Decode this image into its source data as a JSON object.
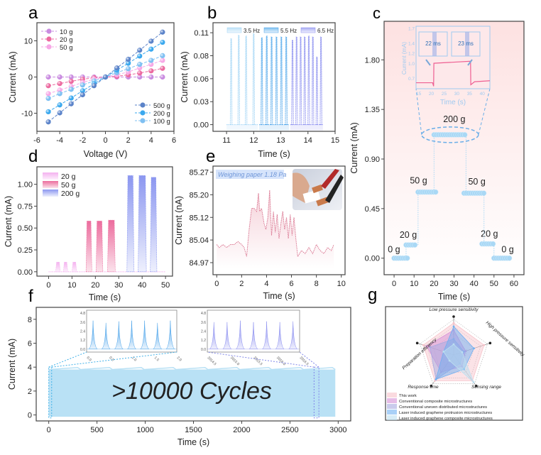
{
  "chart_data": [
    {
      "panel": "a",
      "type": "scatter",
      "title": "",
      "xlabel": "Voltage (V)",
      "ylabel": "Current (mA)",
      "xlim": [
        -6,
        6
      ],
      "ylim": [
        -15,
        15
      ],
      "xticks": [
        -6,
        -4,
        -2,
        0,
        2,
        4,
        6
      ],
      "yticks": [
        -10,
        0,
        10
      ],
      "x": [
        -5,
        -4,
        -3,
        -2,
        -1,
        0,
        1,
        2,
        3,
        4,
        5
      ],
      "legend": [
        {
          "position": "top-left",
          "items": [
            "10 g",
            "20 g",
            "50 g"
          ]
        },
        {
          "position": "bottom-right",
          "items": [
            "500 g",
            "200 g",
            "100 g"
          ]
        }
      ],
      "series": [
        {
          "name": "10 g",
          "color": "#c98be0",
          "values": [
            0,
            0,
            0,
            0,
            0,
            0,
            0,
            0,
            0,
            0,
            0
          ]
        },
        {
          "name": "20 g",
          "color": "#ec6aa0",
          "values": [
            -2.4,
            -1.8,
            -1.2,
            -0.6,
            -0.2,
            0,
            0.2,
            0.6,
            1.1,
            1.7,
            2.4
          ]
        },
        {
          "name": "50 g",
          "color": "#f7a8e6",
          "values": [
            -4.6,
            -3.6,
            -2.6,
            -1.5,
            -0.6,
            0,
            0.6,
            1.4,
            2.5,
            3.5,
            4.6
          ]
        },
        {
          "name": "100 g",
          "color": "#7fc0f2",
          "values": [
            -5.9,
            -4.6,
            -3.4,
            -2.2,
            -1.1,
            0,
            1.2,
            2.3,
            3.5,
            4.6,
            5.9
          ]
        },
        {
          "name": "200 g",
          "color": "#3aa8ee",
          "values": [
            -9.6,
            -7.7,
            -5.8,
            -3.8,
            -1.9,
            0,
            1.9,
            3.8,
            5.8,
            7.7,
            9.6
          ]
        },
        {
          "name": "500 g",
          "color": "#5b83c9",
          "values": [
            -12.4,
            -9.9,
            -7.4,
            -4.9,
            -2.4,
            0,
            2.5,
            4.9,
            7.4,
            9.9,
            12.4
          ]
        }
      ]
    },
    {
      "panel": "b",
      "type": "line",
      "xlabel": "Time (s)",
      "ylabel": "Current (mA)",
      "xlim": [
        10.5,
        15
      ],
      "ylim": [
        -0.008,
        0.122
      ],
      "xticks": [
        11,
        12,
        13,
        14,
        15
      ],
      "ytick_labels": [
        "0.00",
        "0.03",
        "0.06",
        "0.08",
        "0.11"
      ],
      "ytick_values": [
        0,
        0.0275,
        0.055,
        0.0825,
        0.11
      ],
      "legend_position": "top",
      "series": [
        {
          "name": "3.5 Hz",
          "color": "#9fd3f5",
          "range": [
            11.0,
            12.15
          ],
          "peak_times": [
            11.17,
            11.45,
            11.72,
            12.0
          ],
          "peak_values": [
            0.103,
            0.107,
            0.106,
            0.109
          ]
        },
        {
          "name": "5.5 Hz",
          "color": "#4aa3ea",
          "range": [
            12.2,
            13.3
          ],
          "peak_times": [
            12.3,
            12.48,
            12.66,
            12.84,
            13.02,
            13.2
          ],
          "peak_values": [
            0.104,
            0.106,
            0.105,
            0.105,
            0.105,
            0.105
          ]
        },
        {
          "name": "6.5 Hz",
          "color": "#8a8ef0",
          "range": [
            13.35,
            14.55
          ],
          "peak_times": [
            13.43,
            13.58,
            13.73,
            13.88,
            14.03,
            14.18,
            14.33,
            14.48
          ],
          "peak_values": [
            0.101,
            0.105,
            0.105,
            0.105,
            0.106,
            0.105,
            0.081,
            0.105
          ]
        }
      ]
    },
    {
      "panel": "c",
      "type": "scatter",
      "xlabel": "Time (s)",
      "ylabel": "Current (mA)",
      "xlim": [
        -5,
        65
      ],
      "ylim": [
        -0.15,
        2.15
      ],
      "xticks": [
        0,
        10,
        20,
        30,
        40,
        50,
        60
      ],
      "ytick_labels": [
        "0.00",
        "0.45",
        "0.90",
        "1.35",
        "1.80"
      ],
      "ytick_values": [
        0,
        0.45,
        0.9,
        1.35,
        1.8
      ],
      "color": "#a9d8f5",
      "background_gradient": [
        "#fde3e3",
        "#ffffff"
      ],
      "steps": [
        {
          "label": "0 g",
          "t": [
            0,
            7
          ],
          "value": 0.0
        },
        {
          "label": "20 g",
          "t": [
            6,
            11
          ],
          "value": 0.12
        },
        {
          "label": "50 g",
          "t": [
            12,
            21
          ],
          "value": 0.6
        },
        {
          "label": "200 g",
          "t": [
            20,
            36
          ],
          "value": 1.12
        },
        {
          "label": "50 g",
          "t": [
            35,
            45
          ],
          "value": 0.59
        },
        {
          "label": "20 g",
          "t": [
            44,
            50
          ],
          "value": 0.13
        },
        {
          "label": "0 g",
          "t": [
            50,
            58
          ],
          "value": 0.0
        }
      ],
      "inset": {
        "xlabel": "Time (s)",
        "ylabel": "Current (mA)",
        "xticks": [
          15,
          20,
          25,
          30,
          35,
          40
        ],
        "yticks": [
          "0.7",
          "1.0",
          "1.2",
          "1.4",
          "1.7"
        ],
        "response_labels": [
          "22 ms",
          "23 ms"
        ],
        "low": 0.62,
        "high": 1.05,
        "rise_t": 21,
        "fall_t": 35.5
      }
    },
    {
      "panel": "d",
      "type": "area",
      "xlabel": "Time (s)",
      "ylabel": "Current (mA)",
      "xlim": [
        -5,
        53
      ],
      "ylim": [
        -0.05,
        1.2
      ],
      "xticks": [
        0,
        10,
        20,
        30,
        40,
        50
      ],
      "ytick_labels": [
        "0.00",
        "0.25",
        "0.50",
        "0.75",
        "1.00"
      ],
      "ytick_values": [
        0,
        0.25,
        0.5,
        0.75,
        1.0
      ],
      "legend_position": "top-left",
      "series": [
        {
          "name": "20 g",
          "color": "#f4b2ef",
          "pulses": [
            [
              3,
              5,
              0.11
            ],
            [
              6.3,
              8.2,
              0.11
            ],
            [
              10,
              12,
              0.11
            ]
          ]
        },
        {
          "name": "50 g",
          "color": "#ec6c9d",
          "pulses": [
            [
              16,
              18.5,
              0.58
            ],
            [
              20.3,
              23.2,
              0.58
            ],
            [
              25.2,
              28.5,
              0.59
            ]
          ]
        },
        {
          "name": "200 g",
          "color": "#7f8ef0",
          "pulses": [
            [
              33.5,
              36.5,
              1.1
            ],
            [
              38.3,
              41.8,
              1.1
            ],
            [
              43.5,
              46.3,
              1.08
            ]
          ]
        }
      ]
    },
    {
      "panel": "e",
      "type": "area",
      "xlabel": "Time (s)",
      "ylabel": "Current (nA)",
      "xlim": [
        -0.3,
        10.3
      ],
      "ylim": [
        84.93,
        85.29
      ],
      "xticks": [
        0,
        2,
        4,
        6,
        8,
        10
      ],
      "ytick_labels": [
        "84.97",
        "85.04",
        "85.12",
        "85.20",
        "85.27"
      ],
      "ytick_values": [
        84.97,
        85.045,
        85.12,
        85.195,
        85.27
      ],
      "annotation": "Weighing paper 1.18 Pa",
      "color": "#d9738f",
      "x": [
        0,
        0.2,
        0.5,
        0.8,
        1.1,
        1.4,
        1.7,
        2.0,
        2.2,
        2.4,
        2.6,
        2.8,
        3.0,
        3.2,
        3.35,
        3.45,
        3.6,
        3.8,
        3.95,
        4.1,
        4.25,
        4.4,
        4.55,
        4.7,
        4.85,
        5.0,
        5.15,
        5.3,
        5.45,
        5.6,
        5.75,
        5.9,
        6.05,
        6.2,
        6.35,
        6.5,
        6.8,
        7.1,
        7.4,
        7.7,
        8.0,
        8.3,
        8.6,
        8.9,
        9.2,
        9.4
      ],
      "values": [
        85.03,
        85.02,
        85.03,
        85.02,
        85.03,
        85.03,
        85.04,
        85.03,
        85.02,
        84.99,
        85.08,
        85.15,
        85.15,
        85.14,
        85.2,
        85.14,
        85.15,
        85.1,
        85.08,
        85.12,
        85.21,
        85.06,
        85.14,
        85.07,
        85.13,
        85.05,
        85.1,
        85.14,
        85.08,
        85.12,
        85.05,
        85.13,
        85.06,
        85.12,
        85.05,
        84.99,
        85.01,
        85.0,
        85.02,
        85.0,
        85.03,
        85.01,
        85.0,
        85.02,
        85.01,
        85.03
      ]
    },
    {
      "panel": "f",
      "type": "area",
      "xlabel": "Time (s)",
      "ylabel": "Current (mA)",
      "xlim": [
        -130,
        3130
      ],
      "ylim": [
        -0.5,
        9
      ],
      "xticks": [
        0,
        500,
        1000,
        1500,
        2000,
        2500,
        3000
      ],
      "yticks": [
        0,
        2,
        4,
        6,
        8
      ],
      "range": [
        0,
        2970
      ],
      "baseline": 0,
      "envelope": 3.8,
      "color": "#b9e1f5",
      "annotation": ">10000 Cycles",
      "insets": [
        {
          "yticks": [
            "0.0",
            "1.2",
            "2.4",
            "3.6",
            "4.8"
          ],
          "xticks": [
            "0.0",
            "0.5",
            "1.0",
            "1.5",
            "2.0"
          ],
          "peaks": [
            3.8,
            3.5,
            3.7,
            3.8,
            3.8,
            3.5,
            3.8
          ],
          "color": "#4aa3ea",
          "zoom_range": [
            0,
            30
          ]
        },
        {
          "yticks": [
            "0.0",
            "1.2",
            "2.4",
            "3.6",
            "4.8"
          ],
          "xticks": [
            "2014.5",
            "2015.0",
            "2015.5",
            "2016.0",
            "2016.5"
          ],
          "peaks": [
            3.6,
            3.6,
            3.8,
            3.6,
            3.7,
            3.6,
            3.7
          ],
          "color": "#8a8ef0",
          "zoom_range": [
            2750,
            2800
          ]
        }
      ]
    },
    {
      "panel": "g",
      "type": "radar",
      "axes": [
        "Low pressure sensitivity",
        "High pressure sensitivity",
        "Sensing range",
        "Response time",
        "Preparation efficiency"
      ],
      "levels": 5,
      "legend_position": "bottom",
      "series": [
        {
          "name": "This work",
          "color": "#f7c2c9",
          "values": [
            0.9,
            0.9,
            0.9,
            0.9,
            0.9
          ]
        },
        {
          "name": "Conventional composite microstructures",
          "color": "#d68fd6",
          "values": [
            0.7,
            0.35,
            0.4,
            0.6,
            0.8
          ]
        },
        {
          "name": "Conventional uneven distributed microstructures",
          "color": "#a6a9e0",
          "values": [
            0.45,
            0.3,
            0.3,
            0.85,
            0.7
          ]
        },
        {
          "name": "Laser induced graphene protrusion microstructures",
          "color": "#6fb0f2",
          "values": [
            0.8,
            0.6,
            0.5,
            0.85,
            0.3
          ]
        },
        {
          "name": "Laser induced graphene composite microstructures",
          "color": "#bcdff0",
          "values": [
            0.3,
            0.25,
            0.95,
            0.2,
            0.3
          ]
        }
      ]
    }
  ],
  "panel_labels": [
    "a",
    "b",
    "c",
    "d",
    "e",
    "f",
    "g"
  ]
}
